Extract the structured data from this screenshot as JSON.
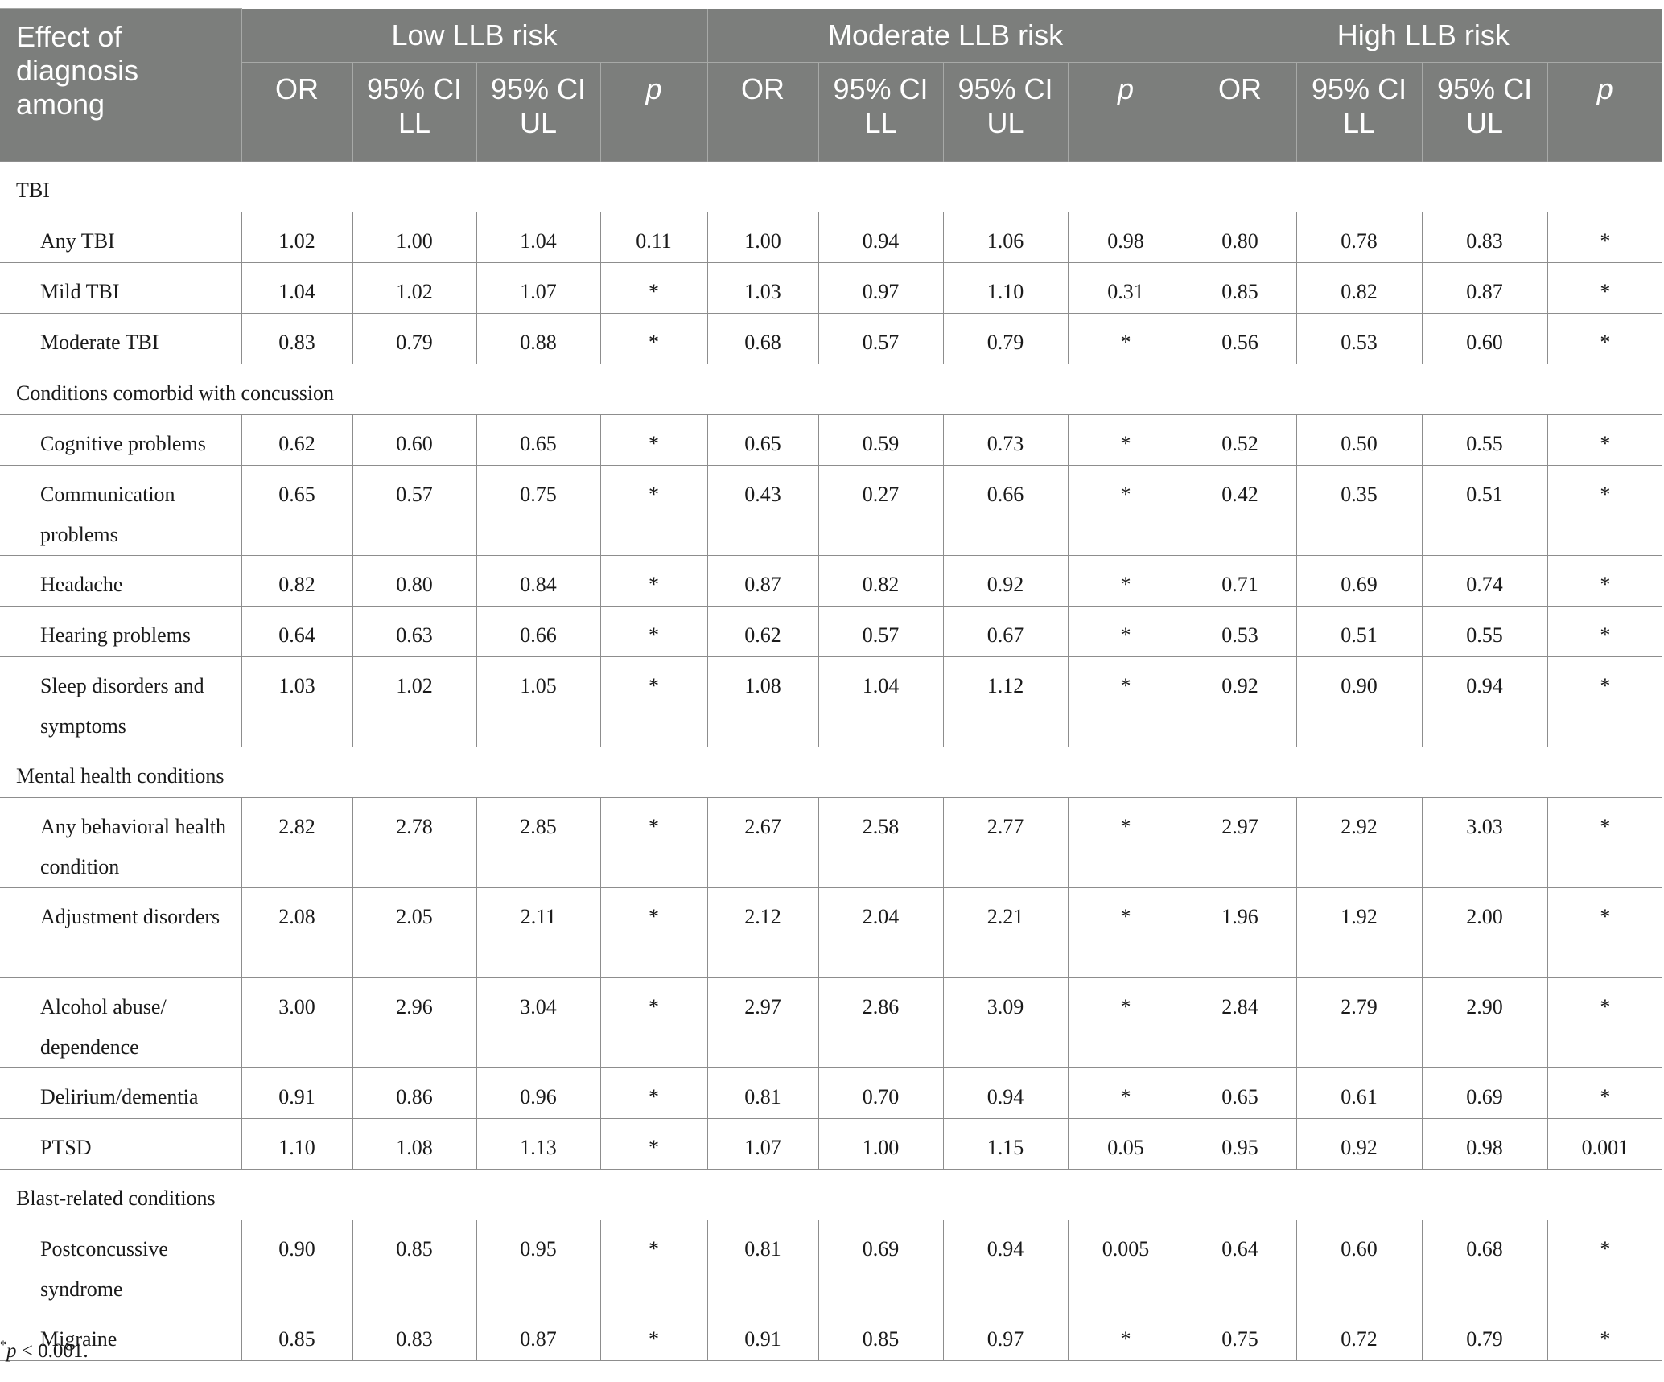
{
  "header": {
    "corner_label": "Effect of diagnosis among",
    "groups": [
      "Low LLB risk",
      "Moderate LLB risk",
      "High LLB risk"
    ],
    "subheaders": [
      "OR",
      "95% CI LL",
      "95% CI UL",
      "p"
    ]
  },
  "sections": [
    {
      "title": "TBI",
      "rows": [
        {
          "label": "Any TBI",
          "cells": [
            "1.02",
            "1.00",
            "1.04",
            "0.11",
            "1.00",
            "0.94",
            "1.06",
            "0.98",
            "0.80",
            "0.78",
            "0.83",
            "*"
          ]
        },
        {
          "label": "Mild TBI",
          "cells": [
            "1.04",
            "1.02",
            "1.07",
            "*",
            "1.03",
            "0.97",
            "1.10",
            "0.31",
            "0.85",
            "0.82",
            "0.87",
            "*"
          ]
        },
        {
          "label": "Moderate TBI",
          "cells": [
            "0.83",
            "0.79",
            "0.88",
            "*",
            "0.68",
            "0.57",
            "0.79",
            "*",
            "0.56",
            "0.53",
            "0.60",
            "*"
          ]
        }
      ]
    },
    {
      "title": "Conditions comorbid with concussion",
      "rows": [
        {
          "label": "Cognitive problems",
          "cells": [
            "0.62",
            "0.60",
            "0.65",
            "*",
            "0.65",
            "0.59",
            "0.73",
            "*",
            "0.52",
            "0.50",
            "0.55",
            "*"
          ]
        },
        {
          "label": "Communication problems",
          "cells": [
            "0.65",
            "0.57",
            "0.75",
            "*",
            "0.43",
            "0.27",
            "0.66",
            "*",
            "0.42",
            "0.35",
            "0.51",
            "*"
          ]
        },
        {
          "label": "Headache",
          "cells": [
            "0.82",
            "0.80",
            "0.84",
            "*",
            "0.87",
            "0.82",
            "0.92",
            "*",
            "0.71",
            "0.69",
            "0.74",
            "*"
          ]
        },
        {
          "label": "Hearing problems",
          "cells": [
            "0.64",
            "0.63",
            "0.66",
            "*",
            "0.62",
            "0.57",
            "0.67",
            "*",
            "0.53",
            "0.51",
            "0.55",
            "*"
          ]
        },
        {
          "label": "Sleep disorders and symptoms",
          "cells": [
            "1.03",
            "1.02",
            "1.05",
            "*",
            "1.08",
            "1.04",
            "1.12",
            "*",
            "0.92",
            "0.90",
            "0.94",
            "*"
          ]
        }
      ]
    },
    {
      "title": "Mental health conditions",
      "rows": [
        {
          "label": "Any behavioral health condition",
          "cells": [
            "2.82",
            "2.78",
            "2.85",
            "*",
            "2.67",
            "2.58",
            "2.77",
            "*",
            "2.97",
            "2.92",
            "3.03",
            "*"
          ]
        },
        {
          "label": "Adjustment disorders",
          "cells": [
            "2.08",
            "2.05",
            "2.11",
            "*",
            "2.12",
            "2.04",
            "2.21",
            "*",
            "1.96",
            "1.92",
            "2.00",
            "*"
          ]
        },
        {
          "label": "Alcohol abuse/ dependence",
          "cells": [
            "3.00",
            "2.96",
            "3.04",
            "*",
            "2.97",
            "2.86",
            "3.09",
            "*",
            "2.84",
            "2.79",
            "2.90",
            "*"
          ]
        },
        {
          "label": "Delirium/dementia",
          "cells": [
            "0.91",
            "0.86",
            "0.96",
            "*",
            "0.81",
            "0.70",
            "0.94",
            "*",
            "0.65",
            "0.61",
            "0.69",
            "*"
          ]
        },
        {
          "label": "PTSD",
          "cells": [
            "1.10",
            "1.08",
            "1.13",
            "*",
            "1.07",
            "1.00",
            "1.15",
            "0.05",
            "0.95",
            "0.92",
            "0.98",
            "0.001"
          ]
        }
      ]
    },
    {
      "title": "Blast-related conditions",
      "rows": [
        {
          "label": "Postconcussive syndrome",
          "cells": [
            "0.90",
            "0.85",
            "0.95",
            "*",
            "0.81",
            "0.69",
            "0.94",
            "0.005",
            "0.64",
            "0.60",
            "0.68",
            "*"
          ]
        },
        {
          "label": "Migraine",
          "cells": [
            "0.85",
            "0.83",
            "0.87",
            "*",
            "0.91",
            "0.85",
            "0.97",
            "*",
            "0.75",
            "0.72",
            "0.79",
            "*"
          ]
        }
      ]
    }
  ],
  "footnote": {
    "marker": "*",
    "p_symbol": "p",
    "text": " < 0.001."
  }
}
